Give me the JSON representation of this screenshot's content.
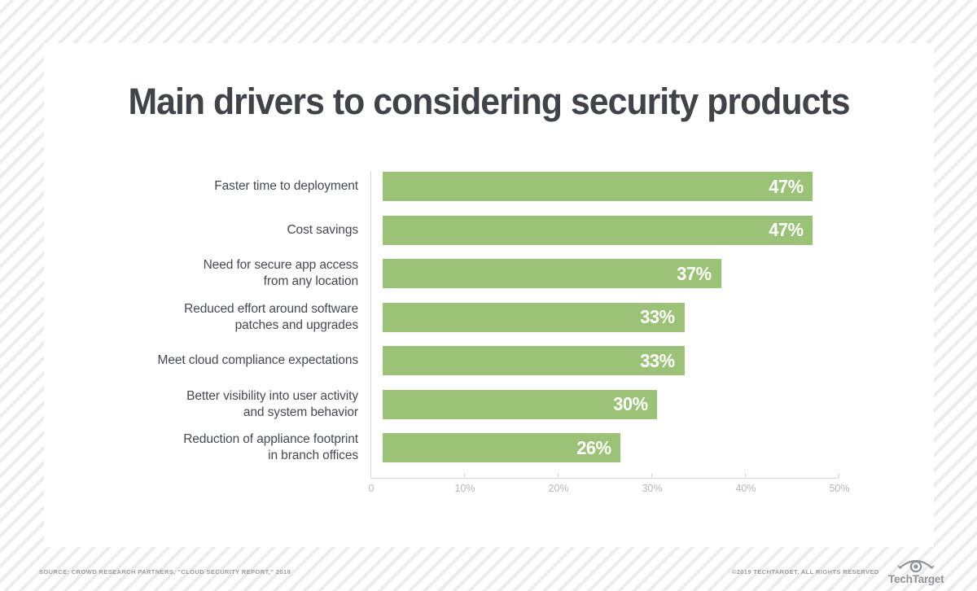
{
  "title": "Main drivers to considering security products",
  "chart_data": {
    "type": "bar",
    "orientation": "horizontal",
    "title": "Main drivers to considering security products",
    "categories": [
      "Faster time to deployment",
      "Cost savings",
      "Need for secure app access from any location",
      "Reduced effort around software patches and upgrades",
      "Meet cloud compliance expectations",
      "Better visibility into user activity and system behavior",
      "Reduction of appliance footprint in branch offices"
    ],
    "category_lines": [
      [
        "Faster time to deployment"
      ],
      [
        "Cost savings"
      ],
      [
        "Need for secure app access",
        "from any location"
      ],
      [
        "Reduced effort around software",
        "patches and upgrades"
      ],
      [
        "Meet cloud compliance expectations"
      ],
      [
        "Better visibility into user activity",
        "and system behavior"
      ],
      [
        "Reduction of appliance footprint",
        "in branch offices"
      ]
    ],
    "values": [
      47,
      47,
      37,
      33,
      33,
      30,
      26
    ],
    "value_labels": [
      "47%",
      "47%",
      "37%",
      "33%",
      "33%",
      "30%",
      "26%"
    ],
    "xlabel": "",
    "ylabel": "",
    "xlim": [
      0,
      50
    ],
    "x_ticks": [
      {
        "value": 0,
        "label": "0"
      },
      {
        "value": 10,
        "label": "10%"
      },
      {
        "value": 20,
        "label": "20%"
      },
      {
        "value": 30,
        "label": "30%"
      },
      {
        "value": 40,
        "label": "40%"
      },
      {
        "value": 50,
        "label": "50%"
      }
    ],
    "grid": false,
    "legend": false,
    "bar_color": "#9bc276",
    "value_label_color": "#ffffff",
    "axis_color": "#d8d8d8",
    "tick_label_color": "#b3b6bc"
  },
  "footer": {
    "source": "SOURCE: CROWD RESEARCH PARTNERS, “CLOUD SECURITY REPORT,” 2018",
    "copyright": "©2019 TECHTARGET. ALL RIGHTS RESERVED",
    "logo_text": "TechTarget"
  },
  "colors": {
    "card_background": "#ffffff",
    "stripe_color": "#ececec",
    "title_color": "#404449",
    "category_label_color": "#45494e"
  }
}
